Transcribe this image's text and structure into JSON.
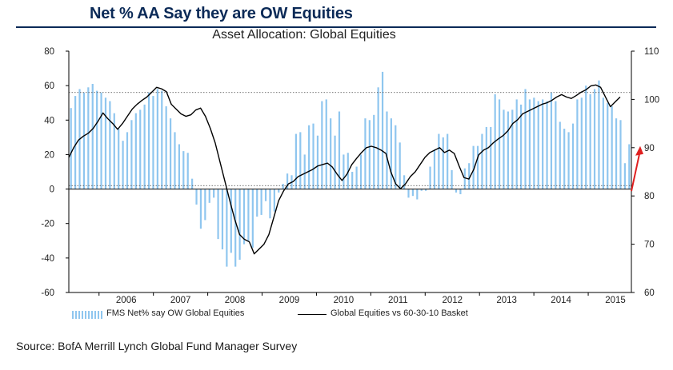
{
  "header": {
    "title": "Net % AA Say they are OW Equities"
  },
  "footer": {
    "source": "Source: BofA Merrill Lynch Global Fund Manager Survey"
  },
  "colors": {
    "bars": "#8fc6ef",
    "line": "#000000",
    "arrow": "#e02020",
    "header": "#0b2a57"
  },
  "chart_data": {
    "type": "bar",
    "title": "Asset Allocation: Global Equities",
    "xlabel": "",
    "ylabel": "",
    "x_tick_labels": [
      "2006",
      "2007",
      "2008",
      "2009",
      "2010",
      "2011",
      "2012",
      "2013",
      "2014",
      "2015"
    ],
    "y_left": {
      "lim": [
        -60,
        80
      ],
      "ticks": [
        80,
        60,
        40,
        20,
        0,
        -20,
        -40,
        -60
      ]
    },
    "y_right": {
      "lim": [
        60,
        110
      ],
      "ticks": [
        110,
        100,
        90,
        80,
        70,
        60
      ]
    },
    "reference_lines": {
      "left_axis_dotted": [
        56,
        2
      ]
    },
    "legend": [
      {
        "label": "FMS Net% say OW Global Equities",
        "type": "bar"
      },
      {
        "label": "Global Equities vs 60-30-10 Basket",
        "type": "line"
      }
    ],
    "series": [
      {
        "name": "FMS Net% say OW Global Equities",
        "axis": "left",
        "type": "bar",
        "values": [
          47,
          54,
          58,
          56,
          59,
          61,
          57,
          56,
          53,
          51,
          44,
          35,
          28,
          33,
          40,
          44,
          46,
          49,
          56,
          54,
          58,
          57,
          48,
          41,
          33,
          26,
          22,
          21,
          6,
          -9,
          -23,
          -18,
          -8,
          -5,
          -29,
          -35,
          -45,
          -37,
          -45,
          -41,
          -32,
          -30,
          -34,
          -16,
          -15,
          -7,
          -17,
          -13,
          -2,
          3,
          9,
          8,
          32,
          33,
          20,
          37,
          38,
          31,
          51,
          52,
          41,
          31,
          45,
          20,
          21,
          10,
          13,
          20,
          41,
          40,
          43,
          59,
          68,
          45,
          41,
          37,
          27,
          8,
          -5,
          -4,
          -6,
          -1,
          -1,
          13,
          23,
          32,
          30,
          32,
          11,
          -2,
          -3,
          12,
          15,
          25,
          25,
          32,
          36,
          36,
          55,
          52,
          46,
          45,
          46,
          52,
          49,
          58,
          52,
          53,
          51,
          52,
          51,
          56,
          51,
          39,
          35,
          33,
          38,
          52,
          53,
          60,
          55,
          58,
          63,
          53,
          50,
          48,
          41,
          40,
          15,
          26
        ]
      },
      {
        "name": "Global Equities vs 60-30-10 Basket",
        "axis": "right",
        "type": "line",
        "values": [
          88.0,
          90.0,
          91.6,
          92.4,
          93.0,
          94.0,
          95.5,
          97.2,
          96.0,
          95.0,
          93.8,
          95.0,
          96.5,
          98.0,
          99.0,
          99.8,
          100.5,
          101.5,
          102.5,
          102.2,
          101.6,
          99.0,
          98.0,
          97.0,
          96.5,
          96.8,
          97.8,
          98.2,
          96.5,
          94.0,
          91.0,
          87.0,
          83.0,
          79.0,
          75.2,
          72.0,
          71.0,
          70.5,
          68.0,
          69.0,
          70.0,
          72.0,
          75.5,
          79.0,
          81.0,
          82.5,
          83.0,
          84.0,
          84.5,
          85.0,
          85.5,
          86.2,
          86.5,
          86.8,
          86.0,
          84.5,
          83.2,
          84.5,
          86.5,
          87.8,
          89.0,
          90.0,
          90.3,
          90.0,
          89.5,
          88.8,
          85.0,
          82.5,
          81.5,
          82.5,
          84.0,
          85.0,
          86.5,
          88.0,
          89.0,
          89.5,
          90.0,
          89.0,
          89.5,
          88.8,
          86.2,
          83.8,
          83.5,
          85.5,
          88.5,
          89.5,
          90.0,
          91.0,
          91.8,
          92.5,
          93.5,
          95.0,
          95.8,
          97.0,
          97.5,
          98.0,
          98.5,
          99.0,
          99.3,
          99.8,
          100.5,
          101.0,
          100.5,
          100.2,
          100.8,
          101.5,
          102.0,
          102.8,
          103.0,
          102.5,
          100.5,
          98.5,
          99.5,
          100.5
        ]
      }
    ],
    "annotations": [
      {
        "type": "arrow",
        "direction": "up",
        "axis": "right",
        "from": 81,
        "to": 90,
        "position": "right edge"
      }
    ]
  }
}
